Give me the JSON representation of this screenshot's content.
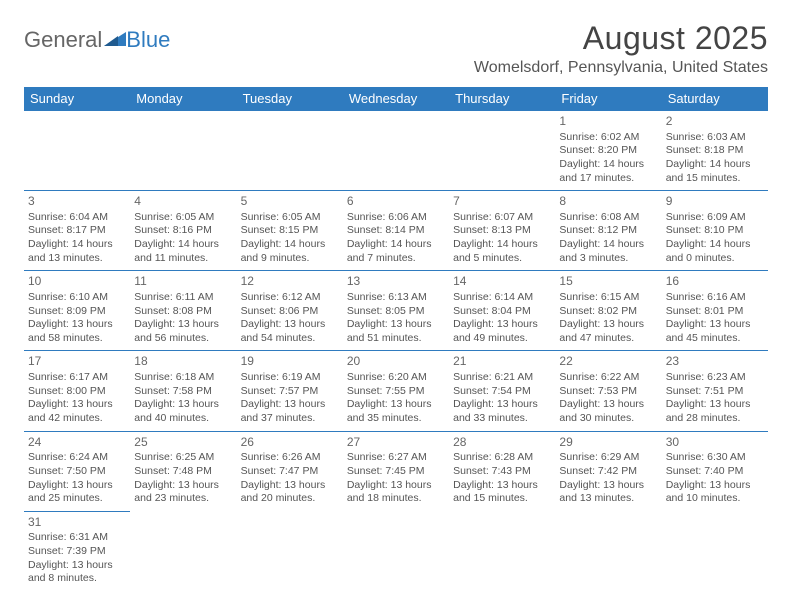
{
  "logo": {
    "part1": "General",
    "part2": "Blue"
  },
  "title": "August 2025",
  "location": "Womelsdorf, Pennsylvania, United States",
  "colors": {
    "header_bg": "#2f7bbf",
    "header_fg": "#ffffff",
    "border": "#2f7bbf",
    "text": "#555555"
  },
  "dayHeaders": [
    "Sunday",
    "Monday",
    "Tuesday",
    "Wednesday",
    "Thursday",
    "Friday",
    "Saturday"
  ],
  "weeks": [
    [
      null,
      null,
      null,
      null,
      null,
      {
        "d": "1",
        "sr": "Sunrise: 6:02 AM",
        "ss": "Sunset: 8:20 PM",
        "dl1": "Daylight: 14 hours",
        "dl2": "and 17 minutes."
      },
      {
        "d": "2",
        "sr": "Sunrise: 6:03 AM",
        "ss": "Sunset: 8:18 PM",
        "dl1": "Daylight: 14 hours",
        "dl2": "and 15 minutes."
      }
    ],
    [
      {
        "d": "3",
        "sr": "Sunrise: 6:04 AM",
        "ss": "Sunset: 8:17 PM",
        "dl1": "Daylight: 14 hours",
        "dl2": "and 13 minutes."
      },
      {
        "d": "4",
        "sr": "Sunrise: 6:05 AM",
        "ss": "Sunset: 8:16 PM",
        "dl1": "Daylight: 14 hours",
        "dl2": "and 11 minutes."
      },
      {
        "d": "5",
        "sr": "Sunrise: 6:05 AM",
        "ss": "Sunset: 8:15 PM",
        "dl1": "Daylight: 14 hours",
        "dl2": "and 9 minutes."
      },
      {
        "d": "6",
        "sr": "Sunrise: 6:06 AM",
        "ss": "Sunset: 8:14 PM",
        "dl1": "Daylight: 14 hours",
        "dl2": "and 7 minutes."
      },
      {
        "d": "7",
        "sr": "Sunrise: 6:07 AM",
        "ss": "Sunset: 8:13 PM",
        "dl1": "Daylight: 14 hours",
        "dl2": "and 5 minutes."
      },
      {
        "d": "8",
        "sr": "Sunrise: 6:08 AM",
        "ss": "Sunset: 8:12 PM",
        "dl1": "Daylight: 14 hours",
        "dl2": "and 3 minutes."
      },
      {
        "d": "9",
        "sr": "Sunrise: 6:09 AM",
        "ss": "Sunset: 8:10 PM",
        "dl1": "Daylight: 14 hours",
        "dl2": "and 0 minutes."
      }
    ],
    [
      {
        "d": "10",
        "sr": "Sunrise: 6:10 AM",
        "ss": "Sunset: 8:09 PM",
        "dl1": "Daylight: 13 hours",
        "dl2": "and 58 minutes."
      },
      {
        "d": "11",
        "sr": "Sunrise: 6:11 AM",
        "ss": "Sunset: 8:08 PM",
        "dl1": "Daylight: 13 hours",
        "dl2": "and 56 minutes."
      },
      {
        "d": "12",
        "sr": "Sunrise: 6:12 AM",
        "ss": "Sunset: 8:06 PM",
        "dl1": "Daylight: 13 hours",
        "dl2": "and 54 minutes."
      },
      {
        "d": "13",
        "sr": "Sunrise: 6:13 AM",
        "ss": "Sunset: 8:05 PM",
        "dl1": "Daylight: 13 hours",
        "dl2": "and 51 minutes."
      },
      {
        "d": "14",
        "sr": "Sunrise: 6:14 AM",
        "ss": "Sunset: 8:04 PM",
        "dl1": "Daylight: 13 hours",
        "dl2": "and 49 minutes."
      },
      {
        "d": "15",
        "sr": "Sunrise: 6:15 AM",
        "ss": "Sunset: 8:02 PM",
        "dl1": "Daylight: 13 hours",
        "dl2": "and 47 minutes."
      },
      {
        "d": "16",
        "sr": "Sunrise: 6:16 AM",
        "ss": "Sunset: 8:01 PM",
        "dl1": "Daylight: 13 hours",
        "dl2": "and 45 minutes."
      }
    ],
    [
      {
        "d": "17",
        "sr": "Sunrise: 6:17 AM",
        "ss": "Sunset: 8:00 PM",
        "dl1": "Daylight: 13 hours",
        "dl2": "and 42 minutes."
      },
      {
        "d": "18",
        "sr": "Sunrise: 6:18 AM",
        "ss": "Sunset: 7:58 PM",
        "dl1": "Daylight: 13 hours",
        "dl2": "and 40 minutes."
      },
      {
        "d": "19",
        "sr": "Sunrise: 6:19 AM",
        "ss": "Sunset: 7:57 PM",
        "dl1": "Daylight: 13 hours",
        "dl2": "and 37 minutes."
      },
      {
        "d": "20",
        "sr": "Sunrise: 6:20 AM",
        "ss": "Sunset: 7:55 PM",
        "dl1": "Daylight: 13 hours",
        "dl2": "and 35 minutes."
      },
      {
        "d": "21",
        "sr": "Sunrise: 6:21 AM",
        "ss": "Sunset: 7:54 PM",
        "dl1": "Daylight: 13 hours",
        "dl2": "and 33 minutes."
      },
      {
        "d": "22",
        "sr": "Sunrise: 6:22 AM",
        "ss": "Sunset: 7:53 PM",
        "dl1": "Daylight: 13 hours",
        "dl2": "and 30 minutes."
      },
      {
        "d": "23",
        "sr": "Sunrise: 6:23 AM",
        "ss": "Sunset: 7:51 PM",
        "dl1": "Daylight: 13 hours",
        "dl2": "and 28 minutes."
      }
    ],
    [
      {
        "d": "24",
        "sr": "Sunrise: 6:24 AM",
        "ss": "Sunset: 7:50 PM",
        "dl1": "Daylight: 13 hours",
        "dl2": "and 25 minutes."
      },
      {
        "d": "25",
        "sr": "Sunrise: 6:25 AM",
        "ss": "Sunset: 7:48 PM",
        "dl1": "Daylight: 13 hours",
        "dl2": "and 23 minutes."
      },
      {
        "d": "26",
        "sr": "Sunrise: 6:26 AM",
        "ss": "Sunset: 7:47 PM",
        "dl1": "Daylight: 13 hours",
        "dl2": "and 20 minutes."
      },
      {
        "d": "27",
        "sr": "Sunrise: 6:27 AM",
        "ss": "Sunset: 7:45 PM",
        "dl1": "Daylight: 13 hours",
        "dl2": "and 18 minutes."
      },
      {
        "d": "28",
        "sr": "Sunrise: 6:28 AM",
        "ss": "Sunset: 7:43 PM",
        "dl1": "Daylight: 13 hours",
        "dl2": "and 15 minutes."
      },
      {
        "d": "29",
        "sr": "Sunrise: 6:29 AM",
        "ss": "Sunset: 7:42 PM",
        "dl1": "Daylight: 13 hours",
        "dl2": "and 13 minutes."
      },
      {
        "d": "30",
        "sr": "Sunrise: 6:30 AM",
        "ss": "Sunset: 7:40 PM",
        "dl1": "Daylight: 13 hours",
        "dl2": "and 10 minutes."
      }
    ],
    [
      {
        "d": "31",
        "sr": "Sunrise: 6:31 AM",
        "ss": "Sunset: 7:39 PM",
        "dl1": "Daylight: 13 hours",
        "dl2": "and 8 minutes."
      },
      null,
      null,
      null,
      null,
      null,
      null
    ]
  ]
}
